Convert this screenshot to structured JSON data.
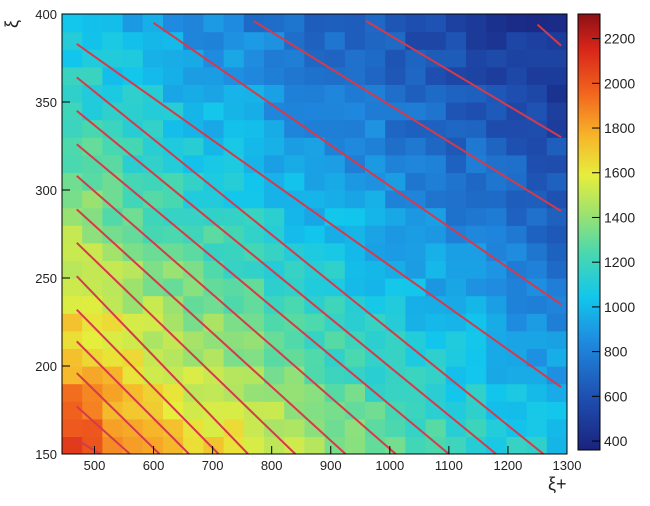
{
  "chart_data": {
    "type": "heatmap",
    "title": "",
    "xlabel": "ξ+",
    "ylabel": "ξ",
    "xlim": [
      445,
      1300
    ],
    "ylim": [
      150,
      400
    ],
    "x_ticks": [
      500,
      600,
      700,
      800,
      900,
      1000,
      1100,
      1200,
      1300
    ],
    "y_ticks": [
      150,
      200,
      250,
      300,
      350,
      400
    ],
    "x_tick_labels": [
      "500",
      "600",
      "700",
      "800",
      "900",
      "1000",
      "1100",
      "1200",
      "1300"
    ],
    "y_tick_labels": [
      "150",
      "200",
      "250",
      "300",
      "350",
      "400"
    ],
    "colorbar": {
      "min": 360,
      "max": 2310,
      "ticks": [
        400,
        600,
        800,
        1000,
        1200,
        1400,
        1600,
        1800,
        2000,
        2200
      ],
      "tick_labels": [
        "400",
        "600",
        "800",
        "1000",
        "1200",
        "1400",
        "1600",
        "1800",
        "2000",
        "2200"
      ]
    },
    "grid": {
      "nx": 25,
      "ny": 25,
      "x_bin_width": 34.2,
      "y_bin_width": 10
    },
    "z_model": {
      "description_free": true,
      "corner_value_low_x_low_y": 2250,
      "corner_value_high_x_high_y": 400
    },
    "contour_lines": [
      {
        "x": [
          470,
          510
        ],
        "y": [
          158,
          150
        ]
      },
      {
        "x": [
          470,
          560
        ],
        "y": [
          177,
          150
        ]
      },
      {
        "x": [
          470,
          610
        ],
        "y": [
          196,
          150
        ]
      },
      {
        "x": [
          470,
          660
        ],
        "y": [
          214,
          150
        ]
      },
      {
        "x": [
          470,
          710
        ],
        "y": [
          232,
          150
        ]
      },
      {
        "x": [
          470,
          760
        ],
        "y": [
          251,
          150
        ]
      },
      {
        "x": [
          470,
          840
        ],
        "y": [
          270,
          150
        ]
      },
      {
        "x": [
          470,
          925
        ],
        "y": [
          289,
          150
        ]
      },
      {
        "x": [
          470,
          1010
        ],
        "y": [
          308,
          150
        ]
      },
      {
        "x": [
          470,
          1100
        ],
        "y": [
          326,
          150
        ]
      },
      {
        "x": [
          470,
          1180
        ],
        "y": [
          345,
          150
        ]
      },
      {
        "x": [
          470,
          1260
        ],
        "y": [
          364,
          150
        ]
      },
      {
        "x": [
          470,
          1290
        ],
        "y": [
          383,
          188
        ]
      },
      {
        "x": [
          600,
          1290
        ],
        "y": [
          395,
          235
        ]
      },
      {
        "x": [
          770,
          1290
        ],
        "y": [
          396,
          288
        ]
      },
      {
        "x": [
          960,
          1290
        ],
        "y": [
          396,
          330
        ]
      },
      {
        "x": [
          1250,
          1290
        ],
        "y": [
          394,
          382
        ]
      }
    ]
  }
}
